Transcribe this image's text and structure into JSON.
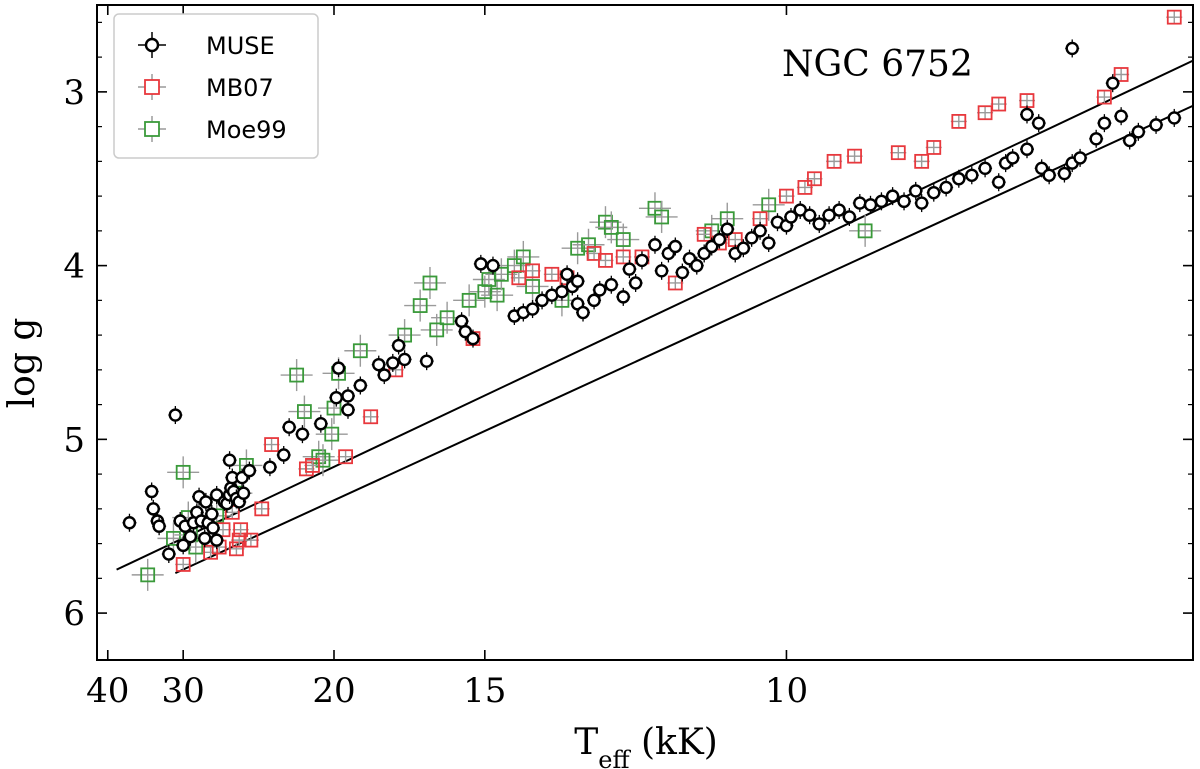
{
  "chart_data": {
    "type": "scatter",
    "title": "NGC 6752",
    "xlabel_main": "T",
    "xlabel_sub": "eff",
    "xlabel_unit": " (kK)",
    "ylabel": "log g",
    "x_scale": "reciprocal",
    "x_direction": "decreasing",
    "xlim": [
      42,
      6.9
    ],
    "ylim": [
      6.27,
      2.5
    ],
    "x_ticks": [
      40,
      30,
      20,
      15,
      10
    ],
    "y_ticks": [
      3,
      4,
      5,
      6
    ],
    "grid": false,
    "legend": {
      "position": "top-left",
      "entries": [
        "MUSE",
        "MB07",
        "Moe99"
      ]
    },
    "colors": {
      "MUSE": "#000000",
      "MB07": "#e8383d",
      "Moe99": "#3a9a3a",
      "error_bar": "#9a9a9a",
      "line": "#000000"
    },
    "series": [
      {
        "name": "MUSE",
        "marker": "circle",
        "points": [
          [
            36.5,
            5.48
          ],
          [
            33.5,
            5.3
          ],
          [
            33.3,
            5.4
          ],
          [
            32.8,
            5.47
          ],
          [
            32.6,
            5.5
          ],
          [
            31.5,
            5.66
          ],
          [
            30.8,
            4.86
          ],
          [
            30.3,
            5.47
          ],
          [
            30.0,
            5.61
          ],
          [
            29.8,
            5.5
          ],
          [
            29.3,
            5.56
          ],
          [
            29.0,
            5.48
          ],
          [
            28.7,
            5.42
          ],
          [
            28.5,
            5.33
          ],
          [
            28.3,
            5.47
          ],
          [
            28.0,
            5.57
          ],
          [
            27.7,
            5.48
          ],
          [
            27.3,
            5.51
          ],
          [
            27.0,
            5.58
          ],
          [
            27.4,
            5.43
          ],
          [
            27.9,
            5.36
          ],
          [
            27.0,
            5.32
          ],
          [
            26.4,
            5.36
          ],
          [
            26.2,
            5.37
          ],
          [
            26.0,
            5.32
          ],
          [
            25.9,
            5.28
          ],
          [
            25.8,
            5.22
          ],
          [
            25.7,
            5.3
          ],
          [
            25.5,
            5.34
          ],
          [
            25.3,
            5.36
          ],
          [
            25.0,
            5.31
          ],
          [
            25.1,
            5.22
          ],
          [
            24.6,
            5.18
          ],
          [
            26.0,
            5.12
          ],
          [
            23.3,
            5.16
          ],
          [
            22.5,
            5.09
          ],
          [
            22.2,
            4.93
          ],
          [
            21.5,
            4.97
          ],
          [
            20.6,
            4.91
          ],
          [
            19.8,
            4.59
          ],
          [
            19.9,
            4.76
          ],
          [
            19.4,
            4.83
          ],
          [
            19.4,
            4.75
          ],
          [
            18.9,
            4.69
          ],
          [
            18.2,
            4.57
          ],
          [
            18.0,
            4.63
          ],
          [
            17.7,
            4.56
          ],
          [
            17.5,
            4.46
          ],
          [
            17.3,
            4.54
          ],
          [
            16.6,
            4.55
          ],
          [
            15.6,
            4.32
          ],
          [
            15.5,
            4.38
          ],
          [
            15.3,
            4.42
          ],
          [
            15.1,
            3.99
          ],
          [
            14.8,
            4.0
          ],
          [
            14.3,
            4.29
          ],
          [
            14.1,
            4.27
          ],
          [
            13.9,
            4.25
          ],
          [
            13.7,
            4.2
          ],
          [
            13.5,
            4.17
          ],
          [
            13.3,
            4.15
          ],
          [
            13.2,
            4.05
          ],
          [
            13.1,
            4.12
          ],
          [
            13.0,
            4.09
          ],
          [
            13.0,
            4.22
          ],
          [
            12.9,
            4.27
          ],
          [
            12.7,
            4.2
          ],
          [
            12.6,
            4.14
          ],
          [
            12.4,
            4.11
          ],
          [
            12.2,
            4.18
          ],
          [
            12.1,
            4.02
          ],
          [
            12.0,
            4.1
          ],
          [
            11.9,
            3.97
          ],
          [
            11.7,
            3.88
          ],
          [
            11.6,
            4.03
          ],
          [
            11.5,
            3.93
          ],
          [
            11.4,
            3.89
          ],
          [
            11.3,
            4.04
          ],
          [
            11.2,
            3.96
          ],
          [
            11.1,
            4.0
          ],
          [
            11.0,
            3.93
          ],
          [
            10.9,
            3.89
          ],
          [
            10.8,
            3.85
          ],
          [
            10.7,
            3.79
          ],
          [
            10.6,
            3.93
          ],
          [
            10.5,
            3.9
          ],
          [
            10.4,
            3.84
          ],
          [
            10.3,
            3.8
          ],
          [
            10.2,
            3.87
          ],
          [
            10.1,
            3.75
          ],
          [
            10.0,
            3.77
          ],
          [
            9.95,
            3.72
          ],
          [
            9.85,
            3.68
          ],
          [
            9.75,
            3.71
          ],
          [
            9.65,
            3.76
          ],
          [
            9.55,
            3.71
          ],
          [
            9.45,
            3.68
          ],
          [
            9.35,
            3.72
          ],
          [
            9.25,
            3.64
          ],
          [
            9.15,
            3.65
          ],
          [
            9.05,
            3.63
          ],
          [
            8.95,
            3.6
          ],
          [
            8.85,
            3.63
          ],
          [
            8.75,
            3.57
          ],
          [
            8.7,
            3.64
          ],
          [
            8.6,
            3.58
          ],
          [
            8.5,
            3.55
          ],
          [
            8.4,
            3.5
          ],
          [
            8.3,
            3.48
          ],
          [
            8.2,
            3.44
          ],
          [
            8.1,
            3.52
          ],
          [
            8.05,
            3.41
          ],
          [
            8.0,
            3.38
          ],
          [
            7.9,
            3.33
          ],
          [
            7.8,
            3.44
          ],
          [
            7.75,
            3.48
          ],
          [
            7.65,
            3.47
          ],
          [
            7.6,
            3.41
          ],
          [
            7.55,
            3.38
          ],
          [
            7.45,
            3.27
          ],
          [
            7.4,
            3.18
          ],
          [
            7.3,
            3.14
          ],
          [
            7.25,
            3.28
          ],
          [
            7.2,
            3.23
          ],
          [
            7.1,
            3.19
          ],
          [
            7.0,
            3.15
          ],
          [
            7.35,
            2.95
          ],
          [
            7.6,
            2.75
          ],
          [
            7.82,
            3.18
          ],
          [
            7.9,
            3.13
          ]
        ]
      },
      {
        "name": "MB07",
        "marker": "square",
        "points": [
          [
            30.0,
            5.72
          ],
          [
            27.5,
            5.65
          ],
          [
            26.8,
            5.62
          ],
          [
            26.5,
            5.52
          ],
          [
            25.5,
            5.63
          ],
          [
            25.3,
            5.58
          ],
          [
            25.2,
            5.52
          ],
          [
            25.8,
            5.42
          ],
          [
            24.5,
            5.58
          ],
          [
            23.8,
            5.4
          ],
          [
            23.2,
            5.03
          ],
          [
            21.3,
            5.17
          ],
          [
            21.0,
            5.15
          ],
          [
            19.5,
            5.1
          ],
          [
            18.5,
            4.87
          ],
          [
            17.6,
            4.6
          ],
          [
            15.3,
            4.42
          ],
          [
            14.2,
            4.07
          ],
          [
            13.9,
            4.03
          ],
          [
            13.5,
            4.05
          ],
          [
            13.2,
            4.07
          ],
          [
            12.7,
            3.93
          ],
          [
            12.5,
            3.97
          ],
          [
            12.2,
            3.95
          ],
          [
            11.9,
            3.95
          ],
          [
            11.4,
            4.1
          ],
          [
            11.0,
            3.82
          ],
          [
            10.8,
            3.87
          ],
          [
            10.6,
            3.85
          ],
          [
            10.3,
            3.73
          ],
          [
            10.0,
            3.6
          ],
          [
            9.8,
            3.55
          ],
          [
            9.7,
            3.5
          ],
          [
            9.5,
            3.4
          ],
          [
            9.3,
            3.37
          ],
          [
            8.9,
            3.35
          ],
          [
            8.7,
            3.4
          ],
          [
            8.6,
            3.32
          ],
          [
            8.4,
            3.17
          ],
          [
            8.2,
            3.12
          ],
          [
            8.1,
            3.07
          ],
          [
            7.9,
            3.05
          ],
          [
            7.4,
            3.03
          ],
          [
            7.3,
            2.9
          ],
          [
            7.0,
            2.57
          ]
        ]
      },
      {
        "name": "Moe99",
        "marker": "square",
        "points": [
          [
            34.0,
            5.78
          ],
          [
            31.0,
            5.57
          ],
          [
            30.0,
            5.19
          ],
          [
            29.5,
            5.45
          ],
          [
            29.3,
            5.55
          ],
          [
            28.8,
            5.62
          ],
          [
            27.0,
            5.44
          ],
          [
            25.5,
            5.31
          ],
          [
            24.8,
            5.15
          ],
          [
            21.8,
            4.63
          ],
          [
            21.4,
            4.84
          ],
          [
            20.7,
            5.1
          ],
          [
            20.5,
            5.12
          ],
          [
            20.1,
            4.97
          ],
          [
            20.0,
            4.82
          ],
          [
            19.8,
            4.62
          ],
          [
            18.9,
            4.49
          ],
          [
            17.3,
            4.4
          ],
          [
            16.8,
            4.23
          ],
          [
            16.5,
            4.1
          ],
          [
            16.3,
            4.37
          ],
          [
            16.0,
            4.3
          ],
          [
            15.4,
            4.2
          ],
          [
            15.0,
            4.15
          ],
          [
            14.9,
            4.08
          ],
          [
            14.7,
            4.17
          ],
          [
            14.6,
            4.05
          ],
          [
            14.3,
            4.0
          ],
          [
            14.1,
            3.95
          ],
          [
            13.9,
            4.12
          ],
          [
            13.3,
            4.2
          ],
          [
            13.0,
            3.9
          ],
          [
            12.8,
            3.88
          ],
          [
            12.5,
            3.75
          ],
          [
            12.4,
            3.78
          ],
          [
            12.2,
            3.85
          ],
          [
            11.7,
            3.67
          ],
          [
            11.6,
            3.72
          ],
          [
            10.9,
            3.8
          ],
          [
            10.7,
            3.73
          ],
          [
            10.2,
            3.65
          ],
          [
            9.2,
            3.8
          ]
        ]
      }
    ],
    "lines": [
      {
        "points": [
          [
            38.5,
            5.75
          ],
          [
            6.9,
            2.82
          ]
        ]
      },
      {
        "points": [
          [
            30.8,
            5.77
          ],
          [
            6.9,
            3.08
          ]
        ]
      }
    ]
  }
}
